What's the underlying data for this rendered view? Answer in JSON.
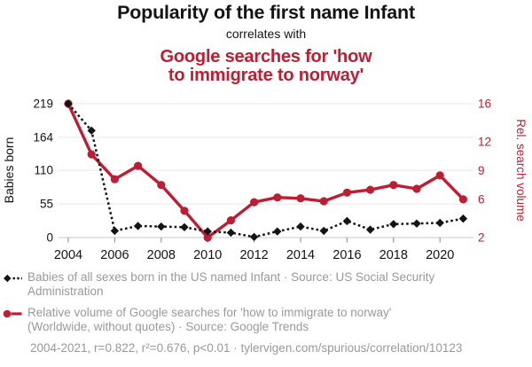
{
  "header": {
    "title_primary": "Popularity of the first name Infant",
    "connector": "correlates with",
    "title_secondary_lines": [
      "Google searches for 'how",
      "to immigrate to norway'"
    ]
  },
  "colors": {
    "accent_red": "#be1e33",
    "series_black": "#141414",
    "grid_line": "#e7e7e7",
    "axis_line": "#c9c9c9",
    "tick": "#878787",
    "legend_text": "#999999",
    "title_text": "#141414"
  },
  "chart_data": {
    "type": "line",
    "x": [
      2004,
      2005,
      2006,
      2007,
      2008,
      2009,
      2010,
      2011,
      2012,
      2013,
      2014,
      2015,
      2016,
      2017,
      2018,
      2019,
      2020,
      2021
    ],
    "x_tick_labels": [
      "2004",
      "2006",
      "2008",
      "2010",
      "2012",
      "2014",
      "2016",
      "2018",
      "2020"
    ],
    "left_axis": {
      "label": "Babies born",
      "ticks": [
        0,
        55,
        110,
        164,
        219
      ],
      "range": [
        0,
        219
      ]
    },
    "right_axis": {
      "label": "Rel. search volume",
      "ticks": [
        2,
        6,
        9,
        12,
        16
      ],
      "range": [
        2,
        16
      ]
    },
    "grid": "horizontal",
    "series": [
      {
        "name": "Babies of all sexes born in the US named Infant",
        "axis": "left",
        "style": "black-dotted-diamond",
        "values": [
          219,
          175,
          11,
          19,
          18,
          17,
          10,
          8,
          1,
          10,
          18,
          11,
          27,
          13,
          22,
          23,
          24,
          31
        ]
      },
      {
        "name": "Relative volume of Google searches for 'how to immigrate to norway'",
        "axis": "right",
        "style": "red-solid-circle",
        "values": [
          16,
          10.7,
          8.1,
          9.5,
          7.5,
          4.8,
          2,
          3.8,
          5.7,
          6.2,
          6.1,
          5.8,
          6.7,
          7.0,
          7.5,
          7.1,
          8.5,
          6.0
        ]
      }
    ]
  },
  "legend": {
    "items": [
      {
        "marker": "black-diamond-dotted",
        "lines": [
          "Babies of all sexes born in the US named Infant · Source: US Social Security",
          "Administration"
        ]
      },
      {
        "marker": "red-circle-solid",
        "lines": [
          "Relative volume of Google searches for 'how to immigrate to norway'",
          "(Worldwide, without quotes) · Source: Google Trends"
        ]
      }
    ],
    "footer": "2004-2021, r=0.822, r²=0.676, p<0.01 · tylervigen.com/spurious/correlation/10123"
  }
}
